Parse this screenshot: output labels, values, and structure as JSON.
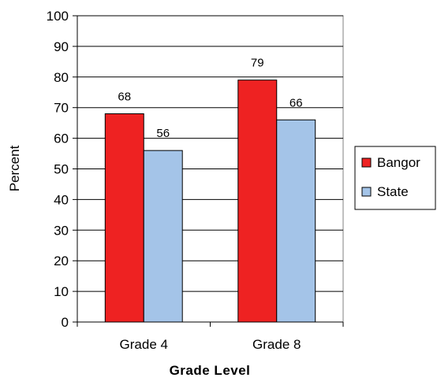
{
  "chart_data": {
    "type": "bar",
    "title": "",
    "xlabel": "Grade Level",
    "ylabel": "Percent",
    "categories": [
      "Grade 4",
      "Grade 8"
    ],
    "series": [
      {
        "name": "Bangor",
        "values": [
          68,
          79
        ],
        "color": "#ee2222"
      },
      {
        "name": "State",
        "values": [
          56,
          66
        ],
        "color": "#a4c4e8"
      }
    ],
    "ylim": [
      0,
      100
    ],
    "yticks": [
      "0",
      "10",
      "20",
      "30",
      "40",
      "50",
      "60",
      "70",
      "80",
      "90",
      "100"
    ],
    "grid": true,
    "legend_position": "right",
    "data_labels": true
  }
}
